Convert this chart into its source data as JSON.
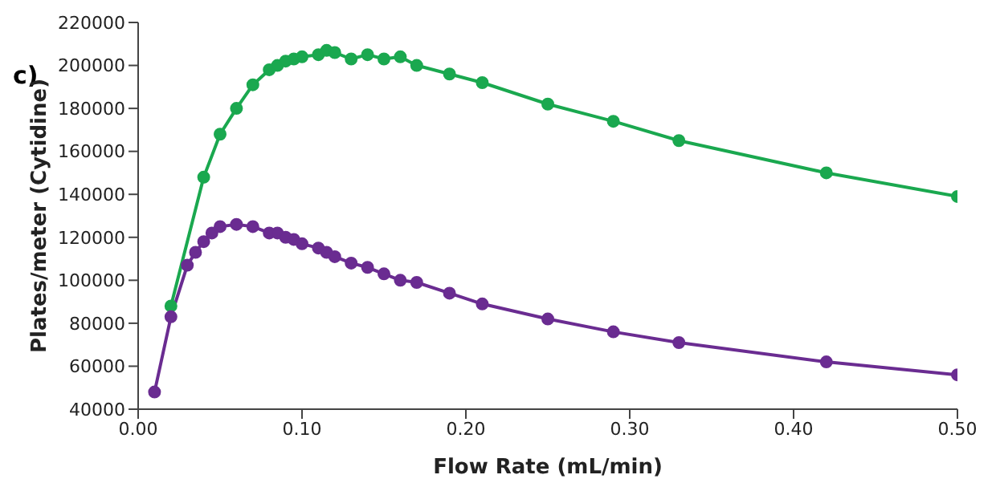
{
  "chart_data": {
    "type": "line",
    "xlabel": "Flow Rate (mL/min)",
    "ylabel": "Plates/meter (Cytidine)",
    "annotations": [
      "c)"
    ],
    "xlim": [
      0,
      0.5
    ],
    "xticks": [
      {
        "value": 0,
        "label": "0.00"
      },
      {
        "value": 0.1,
        "label": "0.10"
      },
      {
        "value": 0.2,
        "label": "0.20"
      },
      {
        "value": 0.3,
        "label": "0.30"
      },
      {
        "value": 0.4,
        "label": "0.40"
      },
      {
        "value": 0.5,
        "label": "0.50"
      }
    ],
    "ylim": [
      40000,
      220000
    ],
    "yticks": [
      40000,
      60000,
      80000,
      100000,
      120000,
      140000,
      160000,
      180000,
      200000,
      220000
    ],
    "marker": "circle",
    "line_style": "solid",
    "series": [
      {
        "color": "#1aa84f",
        "x": [
          0.02,
          0.04,
          0.05,
          0.06,
          0.07,
          0.08,
          0.085,
          0.09,
          0.095,
          0.1,
          0.11,
          0.115,
          0.12,
          0.13,
          0.14,
          0.15,
          0.16,
          0.17,
          0.19,
          0.21,
          0.25,
          0.29,
          0.33,
          0.42,
          0.5
        ],
        "values": [
          88000,
          148000,
          168000,
          180000,
          191000,
          198000,
          200000,
          202000,
          203000,
          204000,
          205000,
          207000,
          206000,
          203000,
          205000,
          203000,
          204000,
          200000,
          196000,
          192000,
          182000,
          174000,
          165000,
          150000,
          139000
        ]
      },
      {
        "color": "#6a2c91",
        "x": [
          0.01,
          0.02,
          0.03,
          0.035,
          0.04,
          0.045,
          0.05,
          0.06,
          0.07,
          0.08,
          0.085,
          0.09,
          0.095,
          0.1,
          0.11,
          0.115,
          0.12,
          0.13,
          0.14,
          0.15,
          0.16,
          0.17,
          0.19,
          0.21,
          0.25,
          0.29,
          0.33,
          0.42,
          0.5
        ],
        "values": [
          48000,
          83000,
          107000,
          113000,
          118000,
          122000,
          125000,
          126000,
          125000,
          122000,
          122000,
          120000,
          119000,
          117000,
          115000,
          113000,
          111000,
          108000,
          106000,
          103000,
          100000,
          99000,
          94000,
          89000,
          82000,
          76000,
          71000,
          62000,
          56000
        ]
      }
    ]
  }
}
